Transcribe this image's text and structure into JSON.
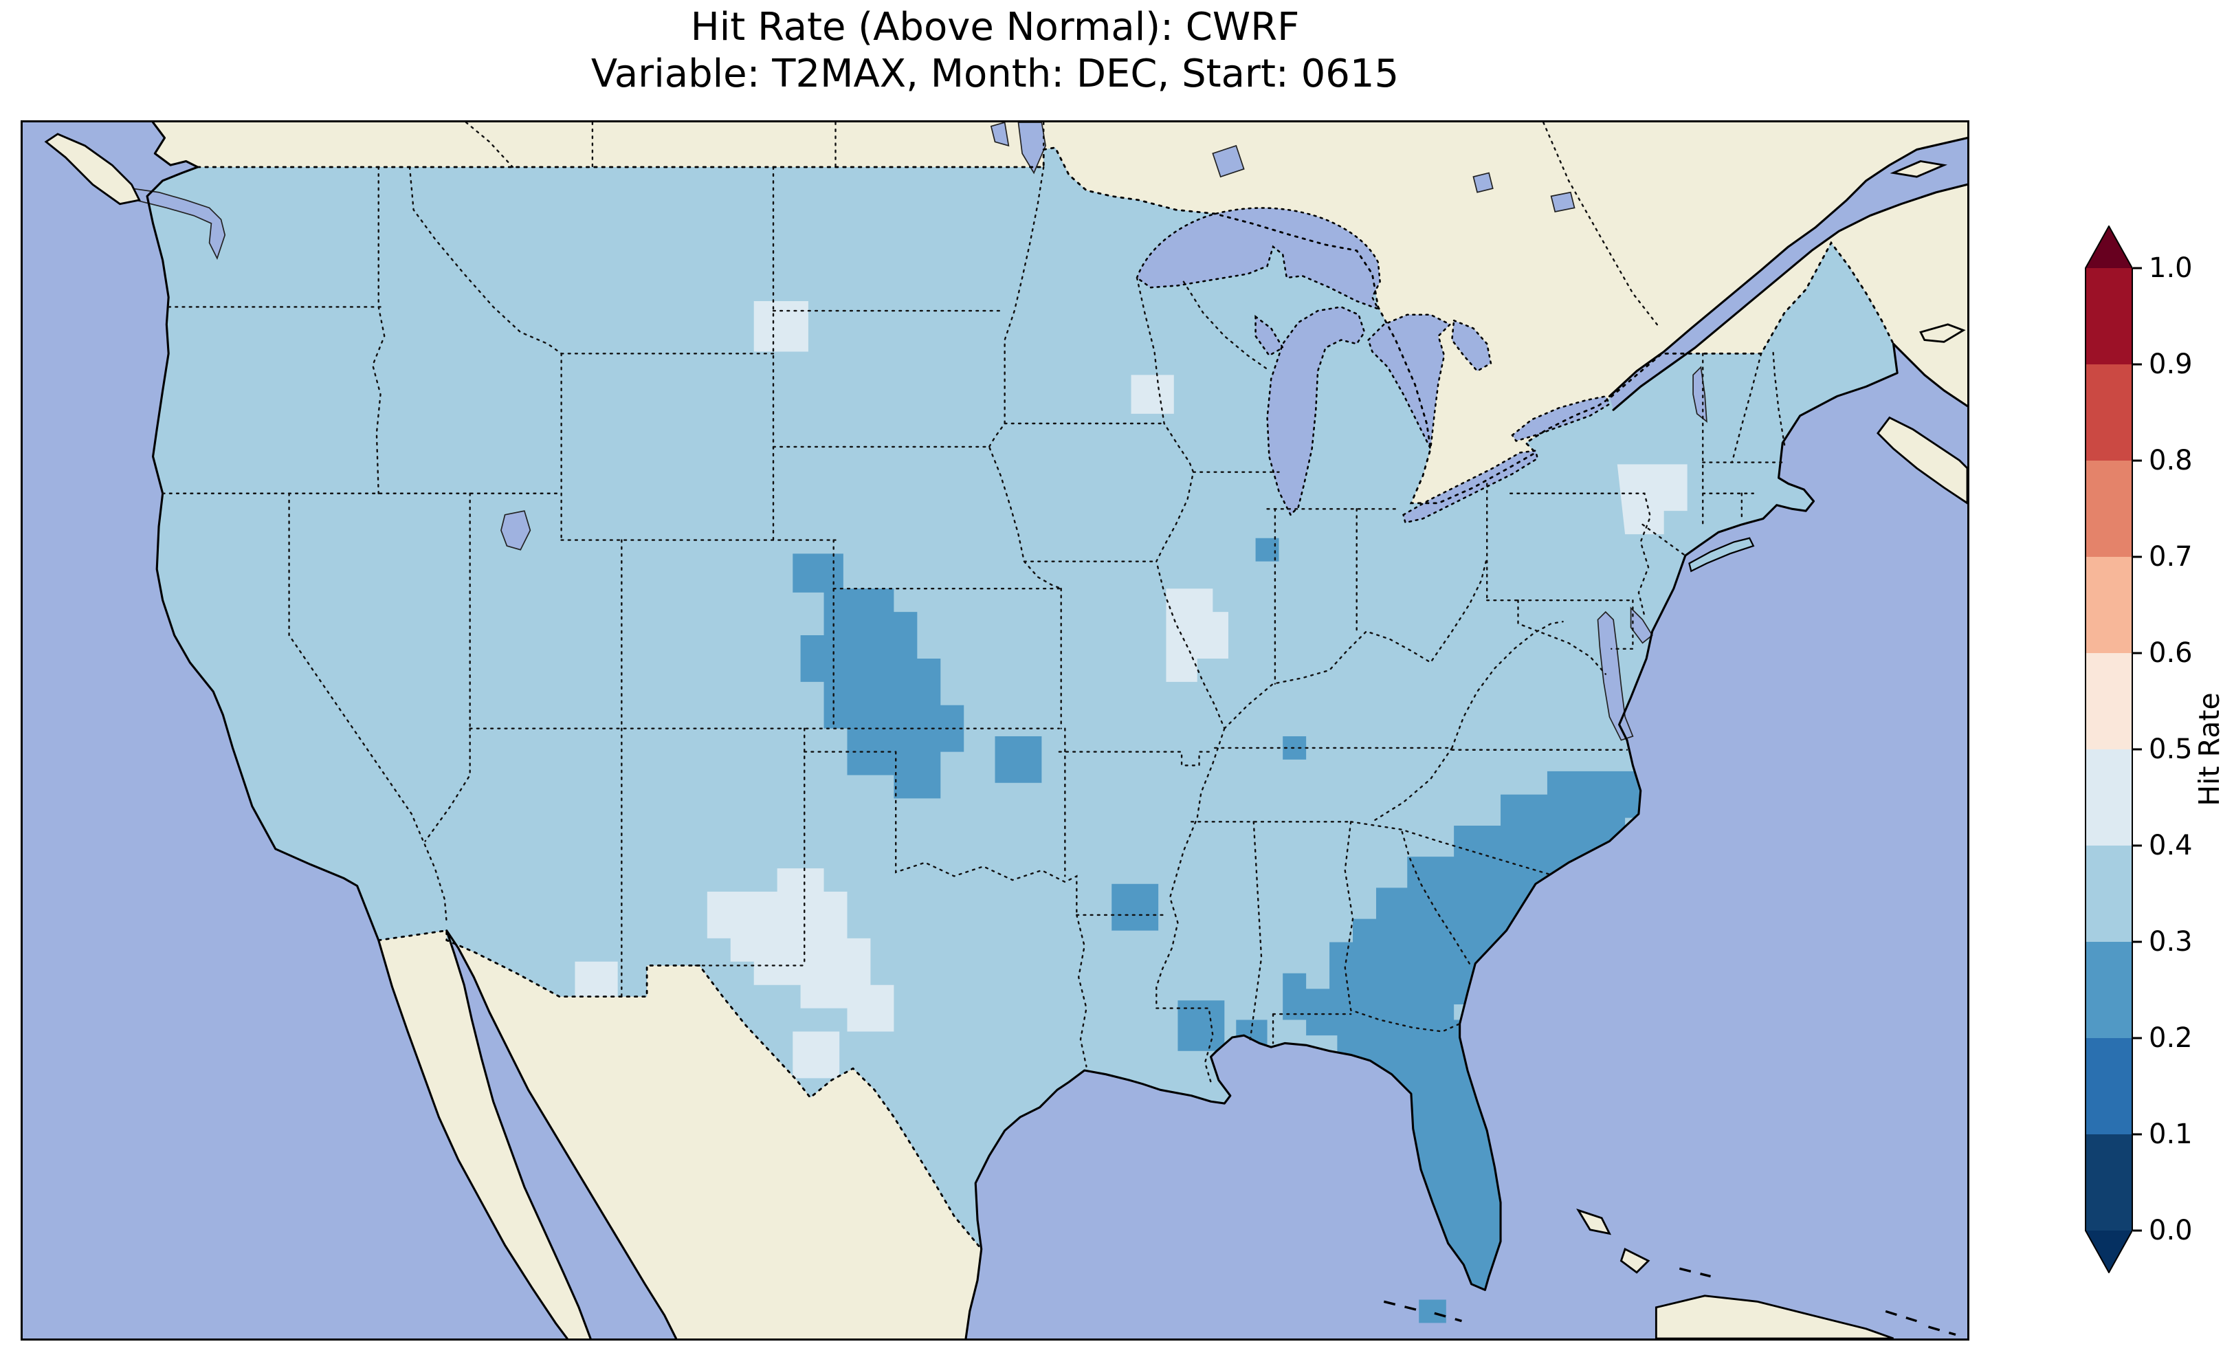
{
  "figure": {
    "title_line1": "Hit Rate (Above Normal): CWRF",
    "title_line2": "Variable: T2MAX, Month: DEC, Start: 0615"
  },
  "colors": {
    "ocean": "#9fb2e0",
    "land": "#f1eeda",
    "us_base": "#a6cee1",
    "patch_dark": "#5199c5",
    "patch_light": "#ddeaf2"
  },
  "colorbar": {
    "label": "Hit Rate",
    "ticks": [
      "1.0",
      "0.9",
      "0.8",
      "0.7",
      "0.6",
      "0.5",
      "0.4",
      "0.3",
      "0.2",
      "0.1",
      "0.0"
    ],
    "bands_bottom_to_top": [
      "#10406f",
      "#2a70b0",
      "#5199c5",
      "#a6cee1",
      "#ddeaf2",
      "#fae7da",
      "#f7b799",
      "#e4836a",
      "#cb4943",
      "#9c1127"
    ],
    "under": "#053061",
    "over": "#67001f"
  },
  "chart_data": {
    "type": "heatmap",
    "subtype": "gridded geographic hit-rate map over the continental United States",
    "title": "Hit Rate (Above Normal): CWRF",
    "subtitle": "Variable: T2MAX, Month: DEC, Start: 0615",
    "colorbar": {
      "label": "Hit Rate",
      "range": [
        0.0,
        1.0
      ],
      "tick_step": 0.1,
      "extend": "both",
      "colormap": "RdBu reversed-style diverging (dark blue = low, dark red = high)"
    },
    "legend_position": "right vertical colorbar",
    "grid": "off",
    "basemap": {
      "us_data_region": "filled with hit-rate cells",
      "non_us_land": "cream/beige (Canada, Mexico, Caribbean islands)",
      "water": "light periwinkle blue (oceans, Great Lakes)",
      "state_borders": "black dotted",
      "national_borders": "black dotted",
      "coastlines": "black solid"
    },
    "regions": [
      {
        "area": "Most of the contiguous US",
        "hit_rate_band": "0.3-0.4"
      },
      {
        "area": "Eastern Colorado into western Kansas / southwestern Nebraska (large blob)",
        "hit_rate_band": "0.2-0.3"
      },
      {
        "area": "Southeast: South Carolina, most of Georgia, coastal North Carolina, most of Florida peninsula",
        "hit_rate_band": "0.2-0.3"
      },
      {
        "area": "Scattered small cells: south-central Kansas/Oklahoma, southern Arkansas/northern Louisiana, southern Mississippi, southeastern Alabama, Tennessee, southeastern Wisconsin, Mississippi delta, Florida Keys",
        "hit_rate_band": "0.2-0.3"
      },
      {
        "area": "Southeastern New Mexico / West Texas (large pale blob)",
        "hit_rate_band": "0.4-0.5"
      },
      {
        "area": "Northeastern Missouri / western Illinois (pale patch)",
        "hit_rate_band": "0.4-0.5"
      },
      {
        "area": "Scattered pale cells: southeastern Arizona, western North Dakota, northern Minnesota, upstate New York / northern New England",
        "hit_rate_band": "0.4-0.5"
      },
      {
        "area": "Canada and Mexico land",
        "hit_rate_band": "no data"
      }
    ]
  }
}
